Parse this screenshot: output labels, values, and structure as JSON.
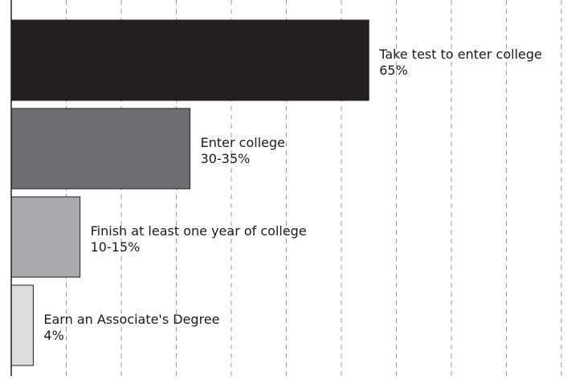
{
  "chart_data": {
    "type": "bar",
    "orientation": "horizontal",
    "title": "",
    "xlabel": "",
    "ylabel": "",
    "xlim": [
      0,
      100
    ],
    "grid": true,
    "legend": "none",
    "categories": [
      "Take test to enter college",
      "Enter college",
      "Finish at least one year of college",
      "Earn an Associate's Degree"
    ],
    "value_labels": [
      "65%",
      "30-35%",
      "10-15%",
      "4%"
    ],
    "values": [
      65,
      32.5,
      12.5,
      4
    ],
    "colors": [
      "#231f20",
      "#6d6e71",
      "#a7a9ac",
      "#dcddde"
    ]
  }
}
